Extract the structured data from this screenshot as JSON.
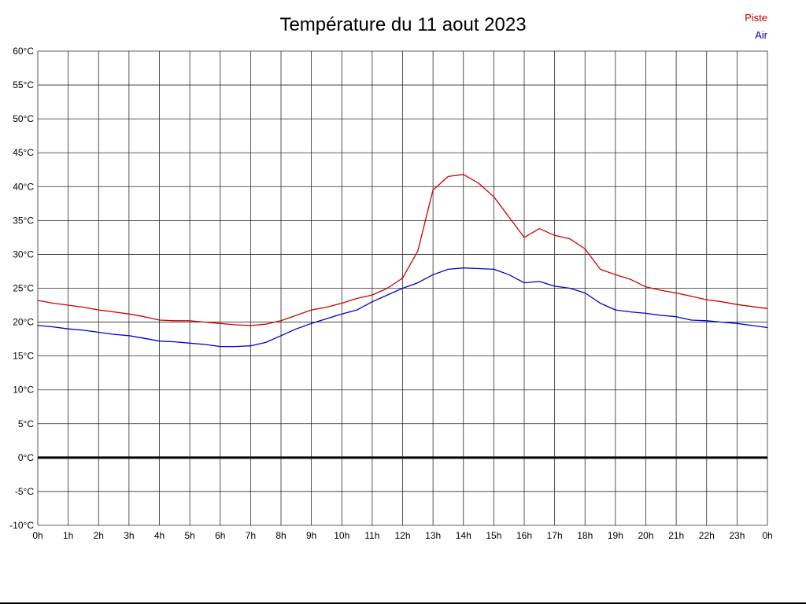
{
  "chart_data": {
    "type": "line",
    "title": "Température du 11 aout 2023",
    "xlim": [
      0,
      24
    ],
    "ylim": [
      -10,
      60
    ],
    "grid": true,
    "zero_line": true,
    "legend_position": "top-right",
    "x_hours": [
      0,
      0.5,
      1,
      1.5,
      2,
      2.5,
      3,
      3.5,
      4,
      4.5,
      5,
      5.5,
      6,
      6.5,
      7,
      7.5,
      8,
      8.5,
      9,
      9.5,
      10,
      10.5,
      11,
      11.5,
      12,
      12.5,
      13,
      13.5,
      14,
      14.5,
      15,
      15.5,
      16,
      16.5,
      17,
      17.5,
      18,
      18.5,
      19,
      19.5,
      20,
      20.5,
      21,
      21.5,
      22,
      22.5,
      23,
      23.5,
      24
    ],
    "series": [
      {
        "name": "Piste",
        "color": "#cc0000",
        "values": [
          23.2,
          22.8,
          22.5,
          22.2,
          21.8,
          21.5,
          21.2,
          20.8,
          20.3,
          20.2,
          20.2,
          20.0,
          19.8,
          19.6,
          19.5,
          19.7,
          20.2,
          21.0,
          21.8,
          22.2,
          22.8,
          23.5,
          24.0,
          25.0,
          26.5,
          30.5,
          39.5,
          41.5,
          41.8,
          40.5,
          38.5,
          35.5,
          32.5,
          33.8,
          32.8,
          32.3,
          30.8,
          27.8,
          27.0,
          26.3,
          25.2,
          24.7,
          24.3,
          23.8,
          23.3,
          23.0,
          22.6,
          22.3,
          22.0
        ]
      },
      {
        "name": "Air",
        "color": "#0000cc",
        "values": [
          19.5,
          19.3,
          19.0,
          18.8,
          18.5,
          18.2,
          18.0,
          17.6,
          17.2,
          17.1,
          16.9,
          16.7,
          16.4,
          16.4,
          16.5,
          17.0,
          18.0,
          19.0,
          19.8,
          20.5,
          21.2,
          21.8,
          23.0,
          24.0,
          25.0,
          25.8,
          27.0,
          27.8,
          28.0,
          27.9,
          27.8,
          27.0,
          25.8,
          26.0,
          25.3,
          25.0,
          24.3,
          22.8,
          21.8,
          21.5,
          21.3,
          21.0,
          20.8,
          20.3,
          20.2,
          20.0,
          19.8,
          19.5,
          19.2
        ]
      }
    ],
    "y_tick_values": [
      60,
      55,
      50,
      45,
      40,
      35,
      30,
      25,
      20,
      15,
      10,
      5,
      0,
      -5,
      -10
    ],
    "y_tick_labels": [
      "60°C",
      "55°C",
      "50°C",
      "45°C",
      "40°C",
      "35°C",
      "30°C",
      "25°C",
      "20°C",
      "15°C",
      "10°C",
      "5°C",
      "0°C",
      "-5°C",
      "-10°C"
    ],
    "x_tick_labels": [
      "0h",
      "1h",
      "2h",
      "3h",
      "4h",
      "5h",
      "6h",
      "7h",
      "8h",
      "9h",
      "10h",
      "11h",
      "12h",
      "13h",
      "14h",
      "15h",
      "16h",
      "17h",
      "18h",
      "19h",
      "20h",
      "21h",
      "22h",
      "23h",
      "0h"
    ],
    "colors": {
      "grid": "#2a2a2a",
      "zero_line": "#000000",
      "tick_text": "#000000"
    }
  }
}
